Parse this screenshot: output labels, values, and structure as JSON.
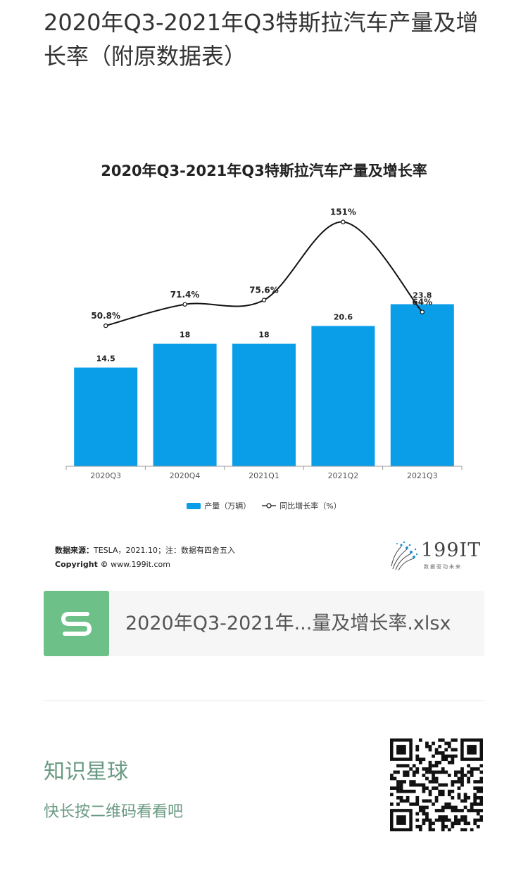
{
  "article": {
    "title": "2020年Q3-2021年Q3特斯拉汽车产量及增长率（附原数据表）"
  },
  "chart_data": {
    "type": "bar",
    "title": "2020年Q3-2021年Q3特斯拉汽车产量及增长率",
    "categories": [
      "2020Q3",
      "2020Q4",
      "2021Q1",
      "2021Q2",
      "2021Q3"
    ],
    "series": [
      {
        "name": "产量（万辆）",
        "type": "bar",
        "values": [
          14.5,
          18,
          18,
          20.6,
          23.8
        ],
        "labels": [
          "14.5",
          "18",
          "18",
          "20.6",
          "23.8"
        ],
        "color": "#0a9ee8"
      },
      {
        "name": "同比增长率（%）",
        "type": "line",
        "values": [
          50.8,
          71.4,
          75.6,
          151,
          64
        ],
        "labels": [
          "50.8%",
          "71.4%",
          "75.6%",
          "151%",
          "64%"
        ],
        "color": "#111111"
      }
    ],
    "bar_ylim": [
      0,
      38
    ],
    "line_ylim": [
      -85,
      165
    ],
    "grid": false,
    "legend_position": "bottom"
  },
  "legend": {
    "bar_label": "产量（万辆）",
    "line_label": "同比增长率（%）"
  },
  "source": {
    "label": "数据来源：",
    "text": "TESLA，2021.10；注：数据有四舍五入",
    "copyright_label": "Copyright ©",
    "copyright_site": "www.199it.com"
  },
  "brand": {
    "name": "199IT",
    "slogan": "数据驱动未来"
  },
  "file_card": {
    "filename": "2020年Q3-2021年...量及增长率.xlsx",
    "icon_color": "#6dc088"
  },
  "knowledge_planet": {
    "title": "知识星球",
    "subtitle": "快长按二维码看看吧"
  }
}
